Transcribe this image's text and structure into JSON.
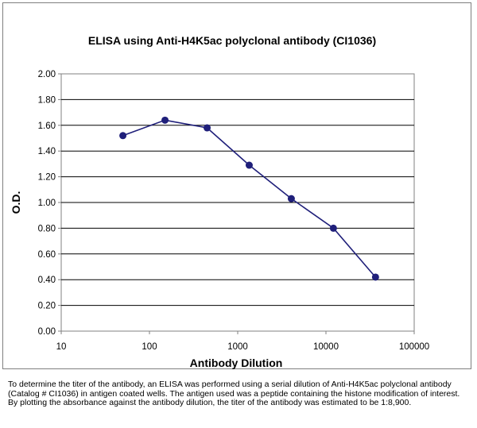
{
  "chart_data": {
    "type": "line",
    "title": "ELISA using Anti-H4K5ac polyclonal antibody (CI1036)",
    "xlabel": "Antibody Dilution",
    "ylabel": "O.D.",
    "x_scale": "log",
    "xlim": [
      10,
      100000
    ],
    "ylim": [
      0,
      2
    ],
    "x_ticks": [
      10,
      100,
      1000,
      10000,
      100000
    ],
    "x_tick_labels": [
      "10",
      "100",
      "1000",
      "10000",
      "100000"
    ],
    "y_ticks": [
      0,
      0.2,
      0.4,
      0.6,
      0.8,
      1.0,
      1.2,
      1.4,
      1.6,
      1.8,
      2.0
    ],
    "y_tick_labels": [
      "0.00",
      "0.20",
      "0.40",
      "0.60",
      "0.80",
      "1.00",
      "1.20",
      "1.40",
      "1.60",
      "1.80",
      "2.00"
    ],
    "grid": "horizontal",
    "legend": "none",
    "series": [
      {
        "color": "#1f1f7a",
        "x": [
          50,
          150,
          450,
          1350,
          4050,
          12150,
          36450
        ],
        "y": [
          1.52,
          1.64,
          1.58,
          1.29,
          1.03,
          0.8,
          0.42
        ]
      }
    ]
  },
  "caption": "To determine the titer of the antibody, an ELISA was performed using a serial dilution of Anti-H4K5ac polyclonal antibody (Catalog # CI1036) in antigen coated wells. The antigen used was a peptide containing the histone modification of interest. By plotting the absorbance against the antibody dilution, the titer of the antibody was estimated to be 1:8,900."
}
